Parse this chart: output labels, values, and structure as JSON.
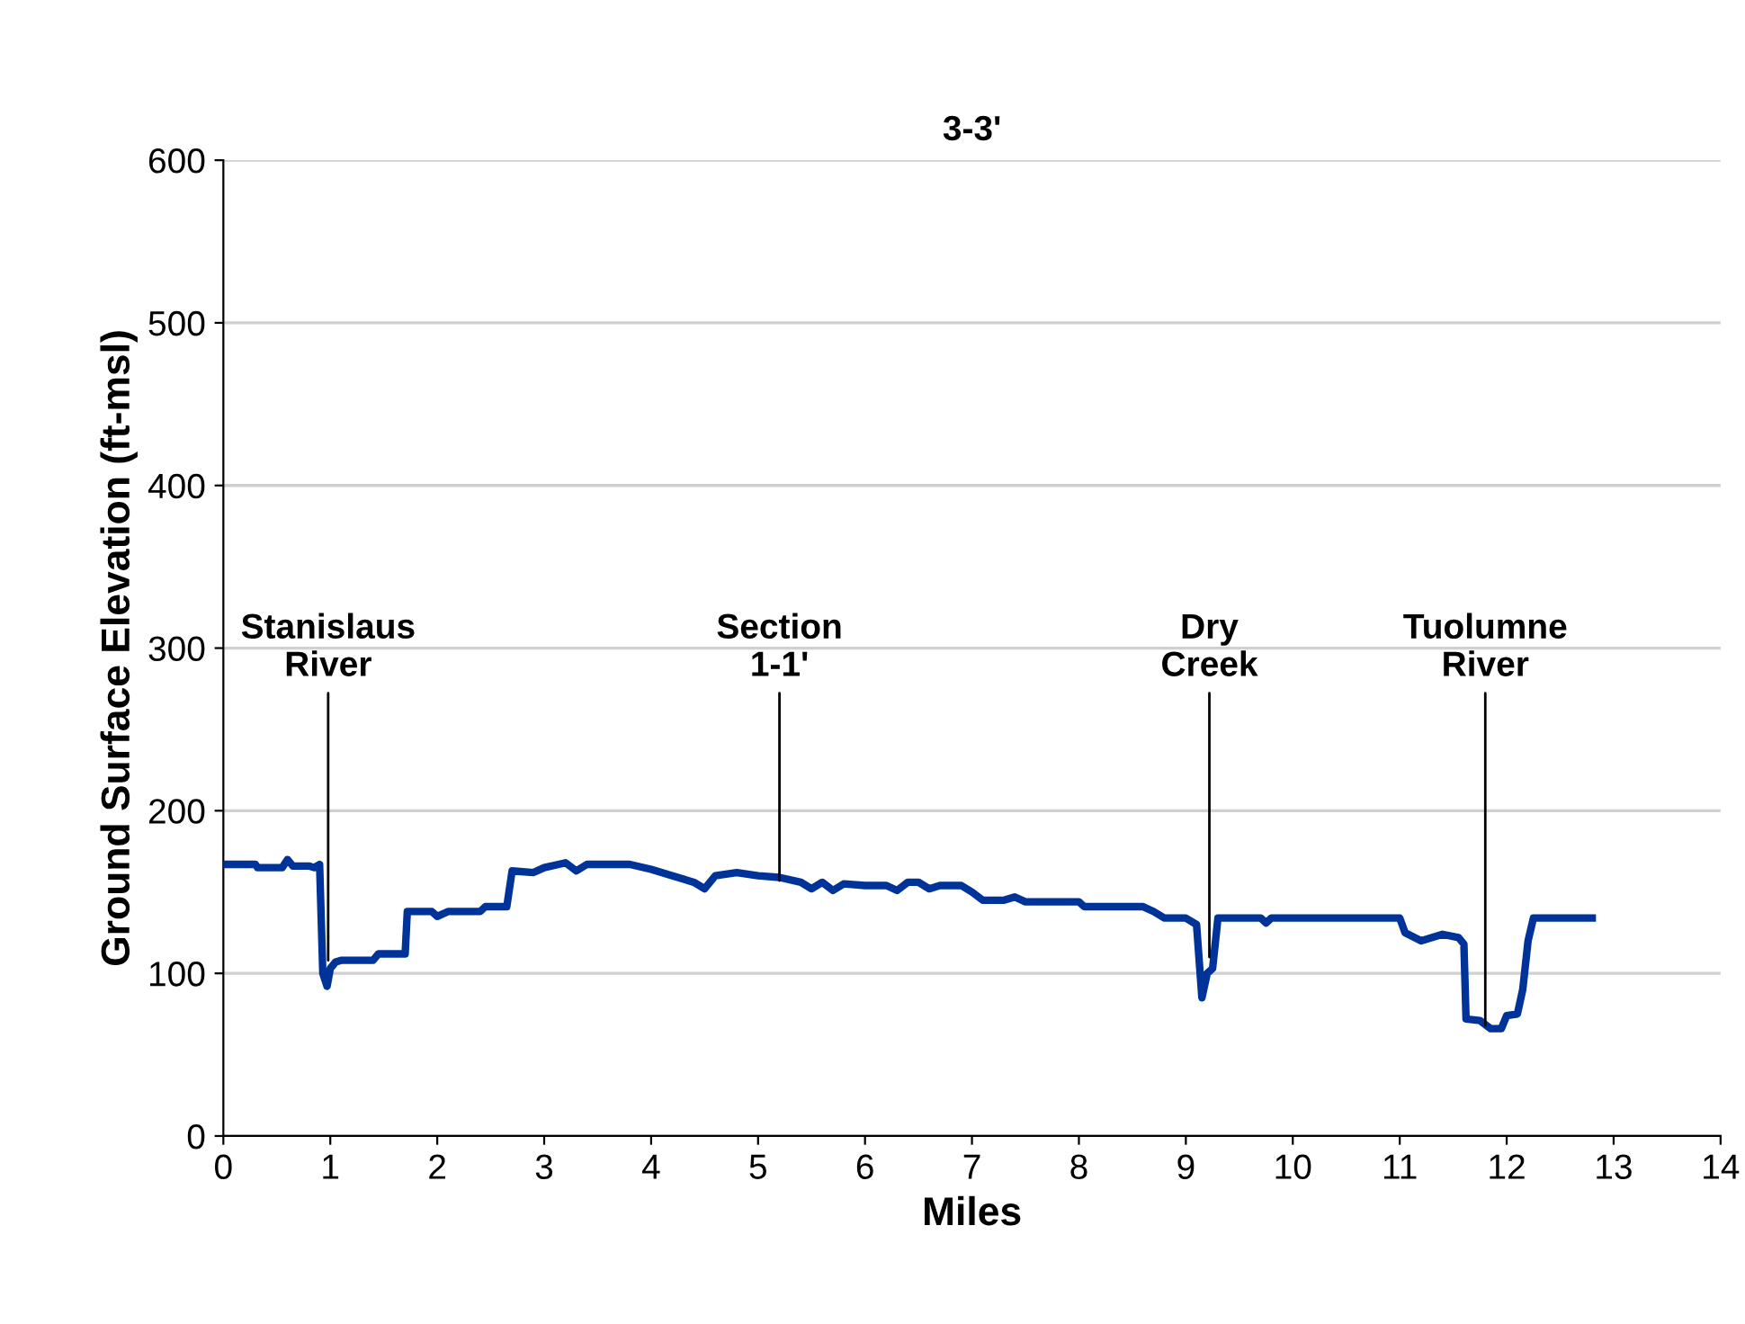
{
  "chart_data": {
    "type": "line",
    "title": "3-3'",
    "xlabel": "Miles",
    "ylabel": "Ground Surface Elevation (ft-msl)",
    "series": [
      {
        "color": "#003399",
        "x": [
          0,
          0.3,
          0.32,
          0.55,
          0.6,
          0.65,
          0.8,
          0.85,
          0.9,
          0.93,
          0.97,
          1.0,
          1.05,
          1.1,
          1.4,
          1.45,
          1.7,
          1.72,
          1.95,
          2.0,
          2.1,
          2.4,
          2.45,
          2.65,
          2.7,
          2.9,
          3.0,
          3.2,
          3.3,
          3.4,
          3.8,
          4.0,
          4.2,
          4.4,
          4.5,
          4.6,
          4.8,
          5.0,
          5.2,
          5.4,
          5.5,
          5.6,
          5.7,
          5.8,
          6.0,
          6.2,
          6.3,
          6.4,
          6.5,
          6.6,
          6.7,
          6.9,
          7.0,
          7.1,
          7.3,
          7.4,
          7.5,
          8.0,
          8.05,
          8.6,
          8.7,
          8.8,
          9.0,
          9.1,
          9.15,
          9.2,
          9.25,
          9.3,
          9.7,
          9.75,
          9.8,
          11.0,
          11.05,
          11.2,
          11.4,
          11.55,
          11.6,
          11.62,
          11.75,
          11.85,
          11.95,
          12.0,
          12.1,
          12.15,
          12.2,
          12.25,
          12.8
        ],
        "values": [
          167,
          167,
          165,
          165,
          170,
          166,
          166,
          165,
          167,
          100,
          92,
          103,
          107,
          108,
          108,
          112,
          112,
          138,
          138,
          135,
          138,
          138,
          141,
          141,
          163,
          162,
          165,
          168,
          163,
          167,
          167,
          164,
          160,
          156,
          152,
          160,
          162,
          160,
          159,
          156,
          152,
          156,
          151,
          155,
          154,
          154,
          151,
          156,
          156,
          152,
          154,
          154,
          150,
          145,
          145,
          147,
          144,
          144,
          141,
          141,
          138,
          134,
          134,
          130,
          85,
          100,
          103,
          134,
          134,
          131,
          134,
          134,
          125,
          120,
          124,
          122,
          118,
          72,
          71,
          66,
          66,
          74,
          75,
          90,
          120,
          134,
          134
        ]
      }
    ],
    "xlim": [
      0,
      14
    ],
    "xticks": [
      0,
      1,
      2,
      3,
      4,
      5,
      6,
      7,
      8,
      9,
      10,
      11,
      12,
      13,
      14
    ],
    "ylim": [
      0,
      600
    ],
    "yticks": [
      0,
      100,
      200,
      300,
      400,
      500,
      600
    ],
    "grid": "y",
    "legend": false,
    "marker": "none",
    "line_style": "solid",
    "annotations": [
      {
        "text": "Stanislaus\nRiver",
        "x": 0.98,
        "y": 108
      },
      {
        "text": "Section\n1-1'",
        "x": 5.2,
        "y": 157
      },
      {
        "text": "Dry\nCreek",
        "x": 9.22,
        "y": 110
      },
      {
        "text": "Tuolumne\nRiver",
        "x": 11.8,
        "y": 68
      }
    ]
  }
}
